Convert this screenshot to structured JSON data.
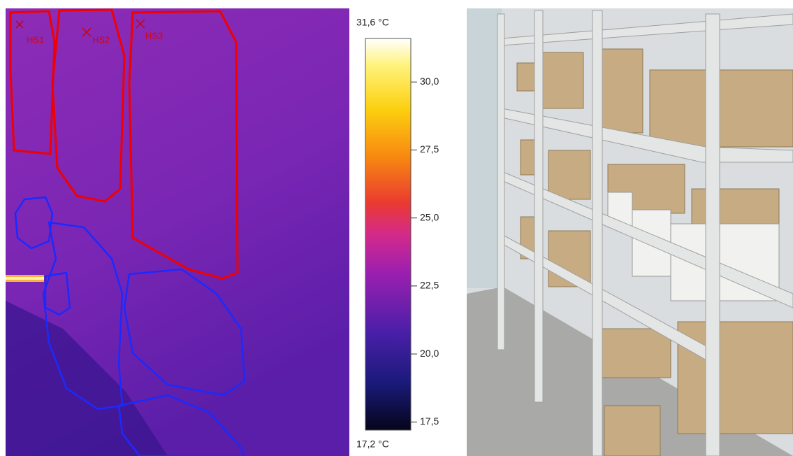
{
  "thermal_image": {
    "regions": [
      {
        "label": "HS1"
      },
      {
        "label": "HS2"
      },
      {
        "label": "HS3"
      }
    ]
  },
  "scale": {
    "max": {
      "value": 31.6,
      "label": "31,6 °C"
    },
    "min": {
      "value": 17.2,
      "label": "17,2 °C"
    },
    "ticks": [
      {
        "value": 30,
        "label": "30,0"
      },
      {
        "value": 27.5,
        "label": "27,5"
      },
      {
        "value": 25,
        "label": "25,0"
      },
      {
        "value": 22.5,
        "label": "22,5"
      },
      {
        "value": 20,
        "label": "20,0"
      },
      {
        "value": 17.5,
        "label": "17,5"
      }
    ]
  }
}
